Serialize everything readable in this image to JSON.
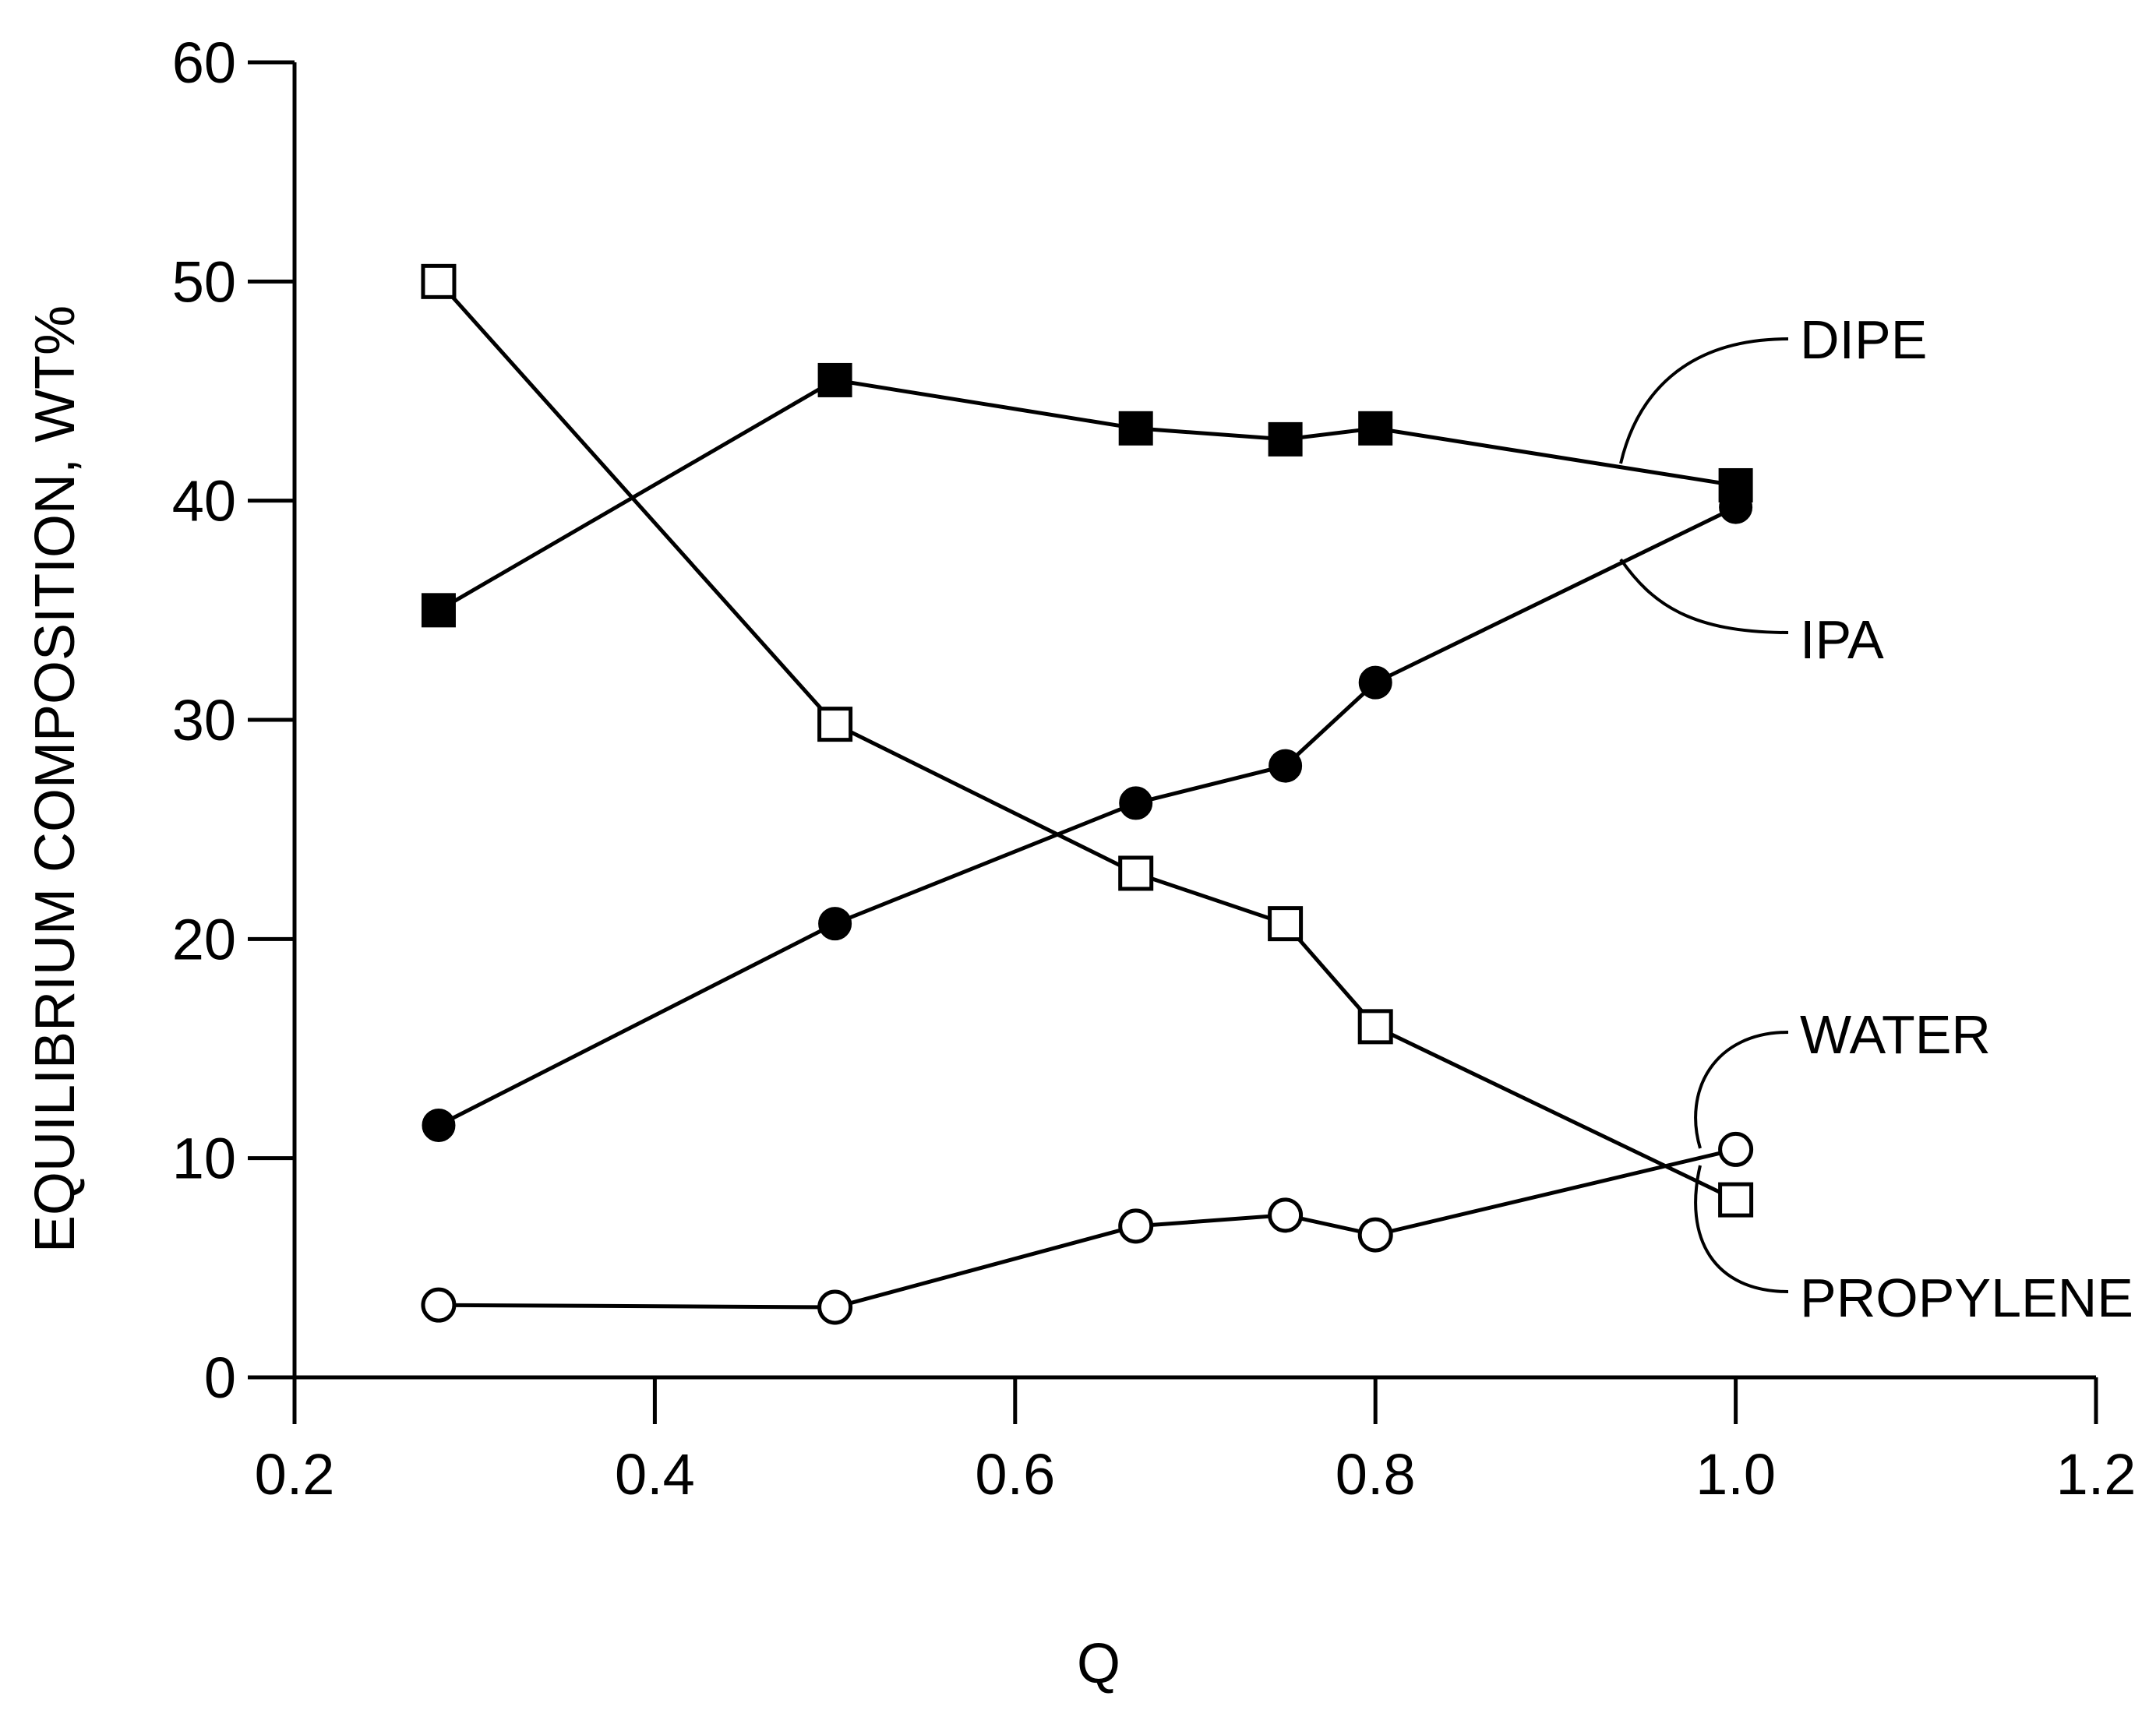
{
  "chart_data": {
    "type": "line",
    "title": "",
    "xlabel": "Q",
    "ylabel": "EQUILIBRIUM COMPOSITION, WT%",
    "xlim": [
      0.2,
      1.2
    ],
    "ylim": [
      0,
      60
    ],
    "x_ticks": [
      "0.2",
      "0.4",
      "0.6",
      "0.8",
      "1.0",
      "1.2"
    ],
    "y_ticks": [
      "0",
      "10",
      "20",
      "30",
      "40",
      "50",
      "60"
    ],
    "grid": false,
    "series": [
      {
        "name": "DIPE",
        "marker": "filled-square",
        "x": [
          0.28,
          0.5,
          0.667,
          0.75,
          0.8,
          1.0
        ],
        "y": [
          35.0,
          45.5,
          43.3,
          42.8,
          43.3,
          40.7
        ]
      },
      {
        "name": "IPA",
        "marker": "filled-circle",
        "x": [
          0.28,
          0.5,
          0.667,
          0.75,
          0.8,
          1.0
        ],
        "y": [
          11.5,
          20.7,
          26.2,
          27.9,
          31.7,
          39.7
        ]
      },
      {
        "name": "WATER",
        "marker": "open-circle",
        "x": [
          0.28,
          0.5,
          0.667,
          0.75,
          0.8,
          1.0
        ],
        "y": [
          3.3,
          3.2,
          6.9,
          7.4,
          6.5,
          10.4
        ]
      },
      {
        "name": "PROPYLENE",
        "marker": "open-square",
        "x": [
          0.28,
          0.5,
          0.667,
          0.75,
          0.8,
          1.0
        ],
        "y": [
          50.0,
          29.8,
          23.0,
          20.7,
          16.0,
          8.1
        ]
      }
    ]
  }
}
